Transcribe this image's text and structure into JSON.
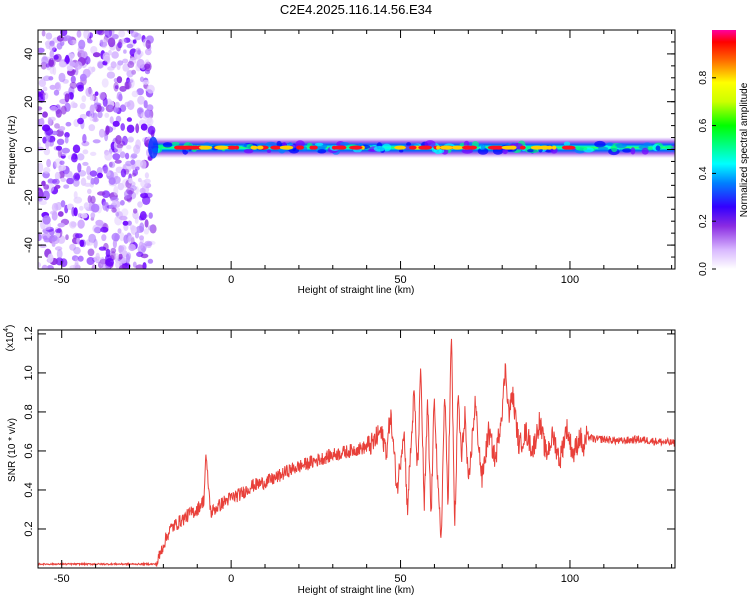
{
  "title": "C2E4.2025.116.14.56.E34",
  "colors": {
    "snr_line": "#e8403a",
    "frame": "#000000",
    "colormap": [
      "#ffffff",
      "#c9a6ff",
      "#8a2be2",
      "#5a00ff",
      "#0000ff",
      "#0080ff",
      "#00ffff",
      "#00ff80",
      "#00ff00",
      "#aaff00",
      "#ffff00",
      "#ff8000",
      "#ff0000",
      "#ff00a0"
    ]
  },
  "chart_data": [
    {
      "type": "heatmap",
      "xlabel": "Height of straight line (km)",
      "ylabel": "Frequency (Hz)",
      "xlim": [
        -57,
        131
      ],
      "ylim": [
        -50,
        50
      ],
      "xticks": [
        -50,
        0,
        50,
        100
      ],
      "yticks": [
        -40,
        -20,
        0,
        20,
        40
      ],
      "colorbar": {
        "label": "Normalized spectral amplitude",
        "range": [
          0,
          1
        ],
        "ticks": [
          0.0,
          0.2,
          0.4,
          0.6,
          0.8
        ]
      },
      "regions": [
        {
          "x": [
            -57,
            -23
          ],
          "kind": "noise",
          "amplitude": 0.15
        },
        {
          "x": [
            -23,
            131
          ],
          "kind": "band",
          "center_hz": 0.8,
          "amplitude": 0.9
        }
      ]
    },
    {
      "type": "line",
      "xlabel": "Height of straight line (km)",
      "ylabel": "SNR (10 * v/v)",
      "yscale_note": "(x10",
      "yscale_exp": "4",
      "xlim": [
        -57,
        131
      ],
      "ylim": [
        0,
        1.22
      ],
      "xticks": [
        -50,
        0,
        50,
        100
      ],
      "yticks": [
        0.2,
        0.4,
        0.6,
        0.8,
        1.0,
        1.2
      ],
      "series": [
        {
          "x": [
            -57,
            -40,
            -22,
            -20,
            -18,
            -15,
            -12,
            -10,
            -8,
            -7.5,
            -6,
            -5,
            -2,
            0,
            3,
            6,
            10,
            13,
            15,
            17,
            20,
            25,
            30,
            35,
            40,
            42,
            44,
            46,
            47,
            49,
            51,
            52,
            54,
            55,
            56,
            57,
            58,
            59,
            60,
            61,
            62,
            63,
            64,
            65,
            66,
            67,
            68,
            69,
            70,
            72,
            74,
            76,
            78,
            80,
            81,
            82,
            83,
            85,
            87,
            89,
            91,
            93,
            95,
            97,
            99,
            101,
            103,
            104,
            105,
            107,
            110,
            115,
            120,
            125,
            131
          ],
          "y": [
            0.02,
            0.02,
            0.02,
            0.12,
            0.2,
            0.24,
            0.28,
            0.3,
            0.35,
            0.58,
            0.28,
            0.3,
            0.34,
            0.36,
            0.38,
            0.42,
            0.44,
            0.46,
            0.48,
            0.5,
            0.52,
            0.55,
            0.58,
            0.6,
            0.62,
            0.64,
            0.7,
            0.6,
            0.8,
            0.4,
            0.72,
            0.3,
            0.9,
            0.5,
            1.02,
            0.3,
            0.85,
            0.25,
            0.9,
            0.4,
            0.15,
            0.9,
            0.35,
            1.21,
            0.2,
            0.9,
            0.55,
            0.8,
            0.4,
            0.85,
            0.45,
            0.7,
            0.55,
            0.82,
            1.03,
            0.78,
            0.9,
            0.62,
            0.7,
            0.6,
            0.75,
            0.58,
            0.68,
            0.55,
            0.72,
            0.58,
            0.68,
            0.6,
            0.68,
            0.66,
            0.66,
            0.65,
            0.66,
            0.65,
            0.64
          ]
        }
      ]
    }
  ]
}
